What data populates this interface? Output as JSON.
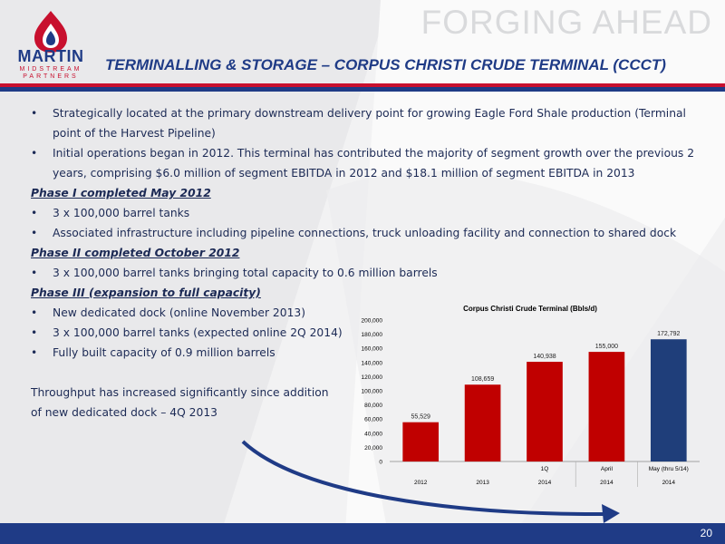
{
  "brand": {
    "logo_name": "MARTIN",
    "logo_line1": "MIDSTREAM",
    "logo_line2": "PARTNERS",
    "tagline": "FORGING AHEAD"
  },
  "slide": {
    "title": "TERMINALLING & STORAGE – CORPUS CHRISTI CRUDE TERMINAL (CCCT)",
    "page_number": "20"
  },
  "content": {
    "bullets_top": [
      "Strategically located at the primary downstream delivery point for growing Eagle Ford Shale production (Terminal point of the Harvest Pipeline)",
      "Initial operations began in 2012. This terminal has contributed the majority of segment growth over the previous 2 years, comprising $6.0 million of segment EBITDA in 2012 and $18.1 million of segment EBITDA in 2013"
    ],
    "phase1": {
      "heading": "Phase I completed May 2012",
      "bullets": [
        "3 x 100,000 barrel tanks",
        "Associated infrastructure including pipeline connections, truck unloading facility and connection to shared dock"
      ]
    },
    "phase2": {
      "heading": "Phase II completed October 2012",
      "bullets": [
        "3 x 100,000 barrel tanks bringing total capacity to 0.6 million barrels"
      ]
    },
    "phase3": {
      "heading": "Phase III (expansion to full capacity)",
      "bullets": [
        "New dedicated dock (online November 2013)",
        "3 x 100,000 barrel tanks (expected online 2Q 2014)",
        "Fully built capacity of 0.9 million barrels"
      ]
    },
    "throughput_line1": "Throughput has increased significantly since addition",
    "throughput_line2": "of new dedicated dock – 4Q 2013"
  },
  "colors": {
    "navy": "#1f3b86",
    "red": "#c8102e",
    "bar_red": "#c00000",
    "bar_blue": "#1f3e7a",
    "text": "#1c2a55"
  },
  "chart_data": {
    "type": "bar",
    "title": "Corpus Christi Crude Terminal (Bbls/d)",
    "categories": [
      {
        "top": "",
        "bottom": "2012"
      },
      {
        "top": "",
        "bottom": "2013"
      },
      {
        "top": "1Q",
        "bottom": "2014"
      },
      {
        "top": "April",
        "bottom": "2014"
      },
      {
        "top": "May (thru 5/14)",
        "bottom": "2014"
      }
    ],
    "values": [
      55529,
      108659,
      140938,
      155000,
      172792
    ],
    "value_labels": [
      "55,529",
      "108,659",
      "140,938",
      "155,000",
      "172,792"
    ],
    "bar_colors": [
      "#c00000",
      "#c00000",
      "#c00000",
      "#c00000",
      "#1f3e7a"
    ],
    "ylim": [
      0,
      200000
    ],
    "yticks": [
      0,
      20000,
      40000,
      60000,
      80000,
      100000,
      120000,
      140000,
      160000,
      180000,
      200000
    ],
    "ytick_labels": [
      "0",
      "20,000",
      "40,000",
      "60,000",
      "80,000",
      "100,000",
      "120,000",
      "140,000",
      "160,000",
      "180,000",
      "200,000"
    ],
    "grid": false,
    "legend": "none"
  }
}
